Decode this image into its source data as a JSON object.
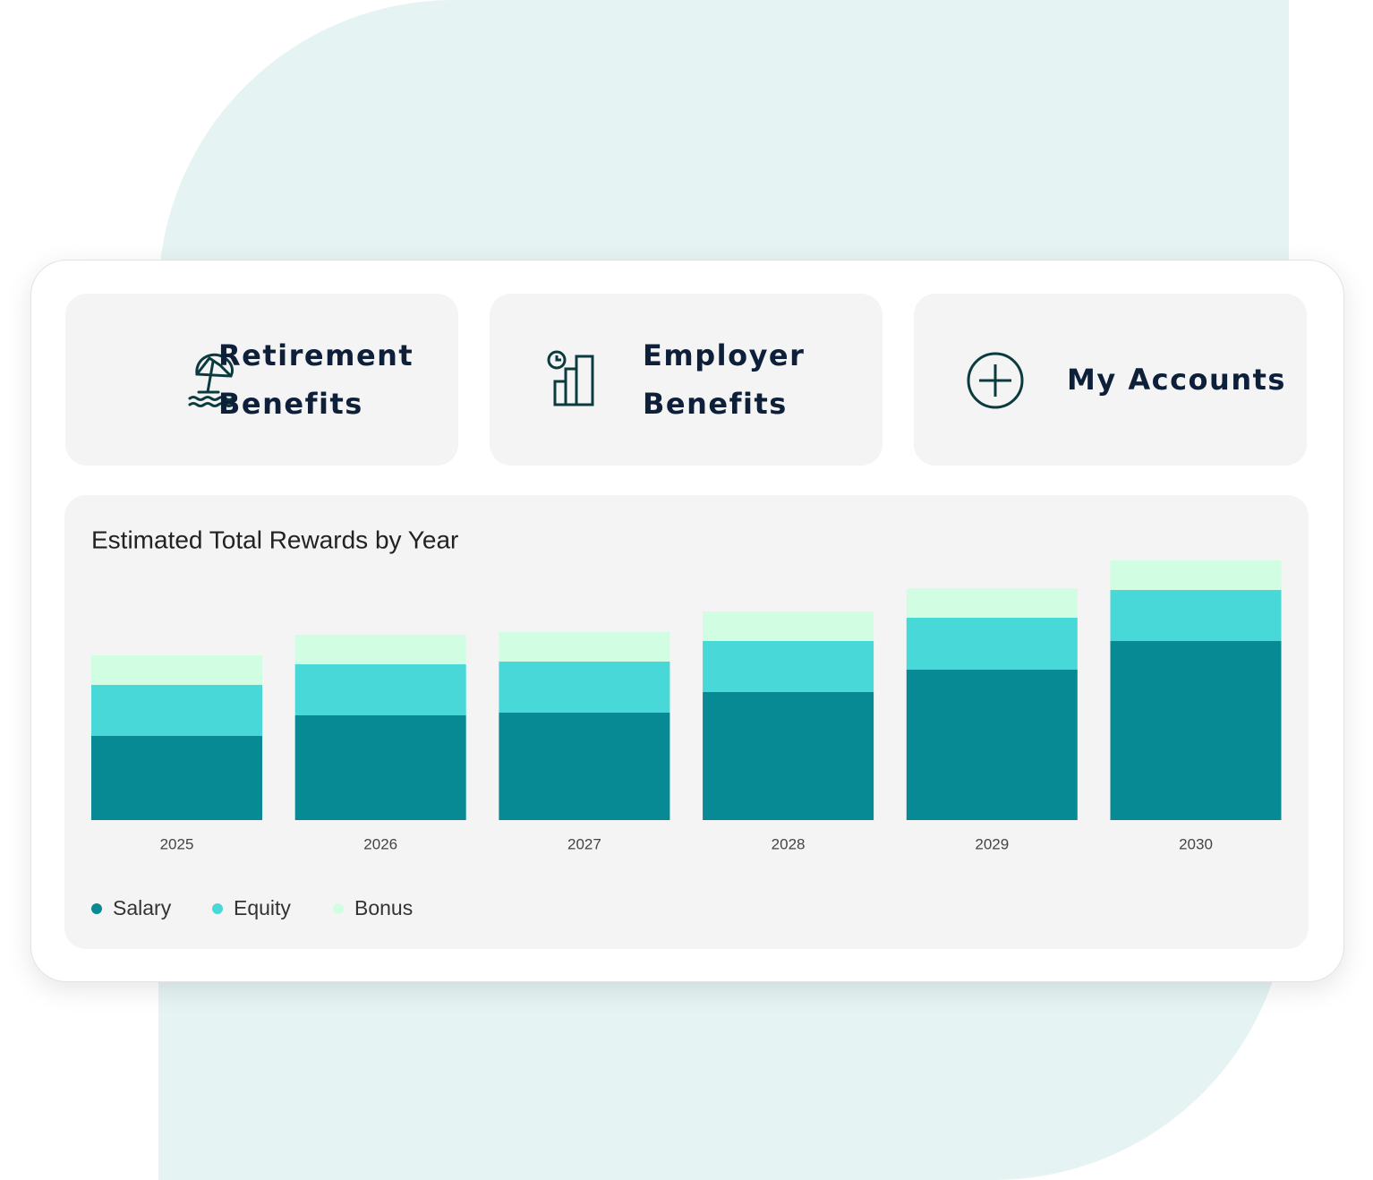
{
  "tiles": [
    {
      "label": "Retirement Benefits"
    },
    {
      "label": "Employer Benefits"
    },
    {
      "label": "My Accounts"
    }
  ],
  "chart_data": {
    "type": "stacked_bar",
    "title": "Estimated Total Rewards by Year",
    "categories": [
      "2025",
      "2026",
      "2027",
      "2028",
      "2029",
      "2030"
    ],
    "series": [
      {
        "name": "Salary",
        "color": "#078a94",
        "values": [
          94,
          117,
          120,
          143,
          168,
          200
        ]
      },
      {
        "name": "Equity",
        "color": "#48d8d8",
        "values": [
          57,
          57,
          57,
          57,
          58,
          57
        ]
      },
      {
        "name": "Bonus",
        "color": "#d1fde3",
        "values": [
          33,
          33,
          33,
          33,
          33,
          33
        ]
      }
    ]
  }
}
